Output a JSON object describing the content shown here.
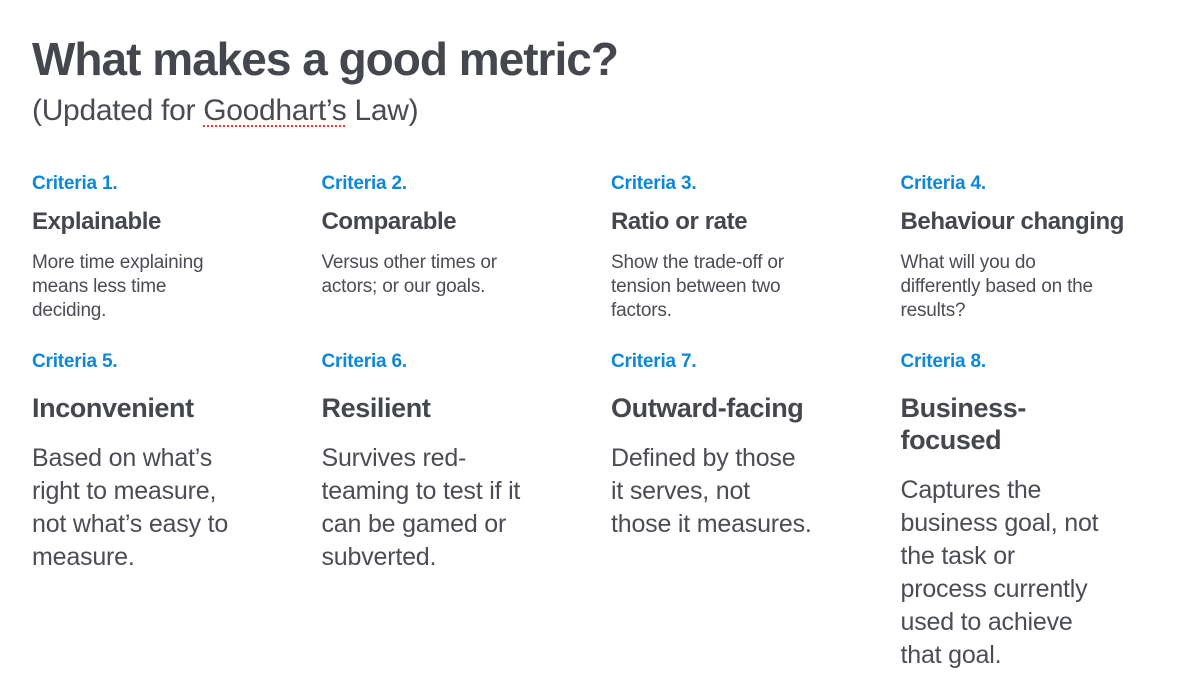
{
  "page": {
    "title": "What makes a good metric?",
    "subtitle_prefix": "(Updated for ",
    "subtitle_underlined_word": "Goodhart’s",
    "subtitle_suffix": " Law)"
  },
  "colors": {
    "heading_gray": "#45474e",
    "body_gray": "#4b4d55",
    "accent_blue": "#0e87d9",
    "spellcheck_red": "#ee3d2f",
    "background": "#ffffff"
  },
  "criteria": [
    {
      "label": "Criteria 1.",
      "title": "Explainable",
      "body": [
        "More time explaining",
        "means less time",
        "deciding."
      ]
    },
    {
      "label": "Criteria 2.",
      "title": "Comparable",
      "body": [
        "Versus other times or",
        "actors; or our goals."
      ]
    },
    {
      "label": "Criteria 3.",
      "title": "Ratio or rate",
      "body": [
        "Show the trade-off or",
        "tension between two",
        "factors."
      ]
    },
    {
      "label": "Criteria 4.",
      "title": "Behaviour changing",
      "body": [
        "What will you do",
        "differently based on the",
        "results?"
      ]
    },
    {
      "label": "Criteria 5.",
      "title": "Inconvenient",
      "body": [
        "Based on what’s",
        "right to measure,",
        "not what’s easy to",
        "measure."
      ]
    },
    {
      "label": "Criteria 6.",
      "title": "Resilient",
      "body": [
        "Survives red-",
        "teaming to test if it",
        "can be gamed or",
        "subverted."
      ]
    },
    {
      "label": "Criteria 7.",
      "title": "Outward-facing",
      "body": [
        "Defined by those",
        "it serves, not",
        "those it measures."
      ]
    },
    {
      "label": "Criteria 8.",
      "title": [
        "Business-",
        "focused"
      ],
      "body": [
        "Captures the",
        "business goal, not",
        "the task or",
        "process currently",
        "used to achieve",
        "that goal."
      ]
    }
  ]
}
